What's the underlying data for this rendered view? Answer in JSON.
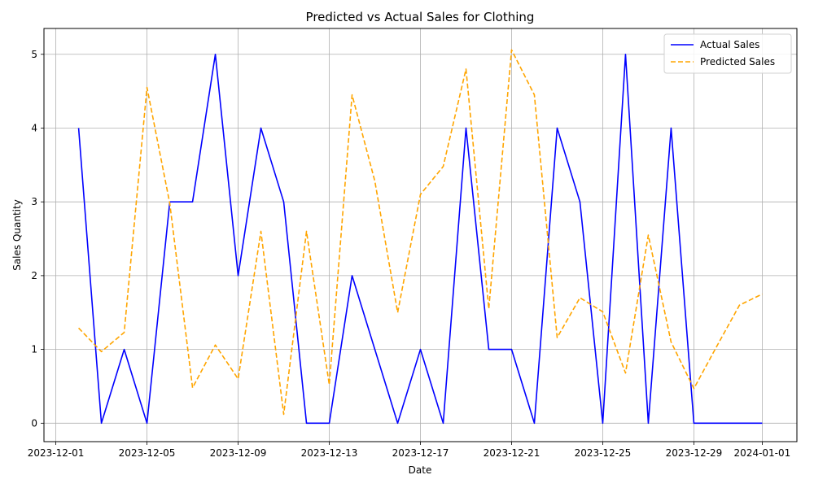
{
  "chart_data": {
    "type": "line",
    "title": "Predicted vs Actual Sales for Clothing",
    "xlabel": "Date",
    "ylabel": "Sales Quantity",
    "x": [
      "2023-12-02",
      "2023-12-03",
      "2023-12-04",
      "2023-12-05",
      "2023-12-06",
      "2023-12-07",
      "2023-12-08",
      "2023-12-09",
      "2023-12-10",
      "2023-12-11",
      "2023-12-12",
      "2023-12-13",
      "2023-12-14",
      "2023-12-15",
      "2023-12-16",
      "2023-12-17",
      "2023-12-18",
      "2023-12-19",
      "2023-12-20",
      "2023-12-21",
      "2023-12-22",
      "2023-12-23",
      "2023-12-24",
      "2023-12-25",
      "2023-12-26",
      "2023-12-27",
      "2023-12-28",
      "2023-12-29",
      "2023-12-30",
      "2023-12-31",
      "2024-01-01"
    ],
    "series": [
      {
        "name": "Actual Sales",
        "color": "#0000ff",
        "style": "solid",
        "values": [
          4,
          0,
          1,
          0,
          3,
          3,
          5,
          2,
          4,
          3,
          0,
          0,
          2,
          1,
          0,
          1,
          0,
          4,
          1,
          1,
          0,
          4,
          3,
          0,
          5,
          0,
          4,
          0,
          0,
          0,
          0
        ]
      },
      {
        "name": "Predicted Sales",
        "color": "#ffa500",
        "style": "dashed",
        "values": [
          1.29,
          0.97,
          1.23,
          4.55,
          2.98,
          0.48,
          1.06,
          0.6,
          2.6,
          0.12,
          2.6,
          0.52,
          4.45,
          3.28,
          1.5,
          3.1,
          3.48,
          4.8,
          1.55,
          5.06,
          4.45,
          1.16,
          1.7,
          1.51,
          0.68,
          2.55,
          1.1,
          0.47,
          1.04,
          1.6,
          1.75
        ]
      }
    ],
    "xticks": [
      "2023-12-01",
      "2023-12-05",
      "2023-12-09",
      "2023-12-13",
      "2023-12-17",
      "2023-12-21",
      "2023-12-25",
      "2023-12-29",
      "2024-01-01"
    ],
    "yticks": [
      0,
      1,
      2,
      3,
      4,
      5
    ],
    "xlim": [
      "2023-11-30T11:30",
      "2024-01-02T12:30"
    ],
    "ylim": [
      -0.25,
      5.35
    ],
    "grid": true,
    "legend_position": "top-right"
  }
}
